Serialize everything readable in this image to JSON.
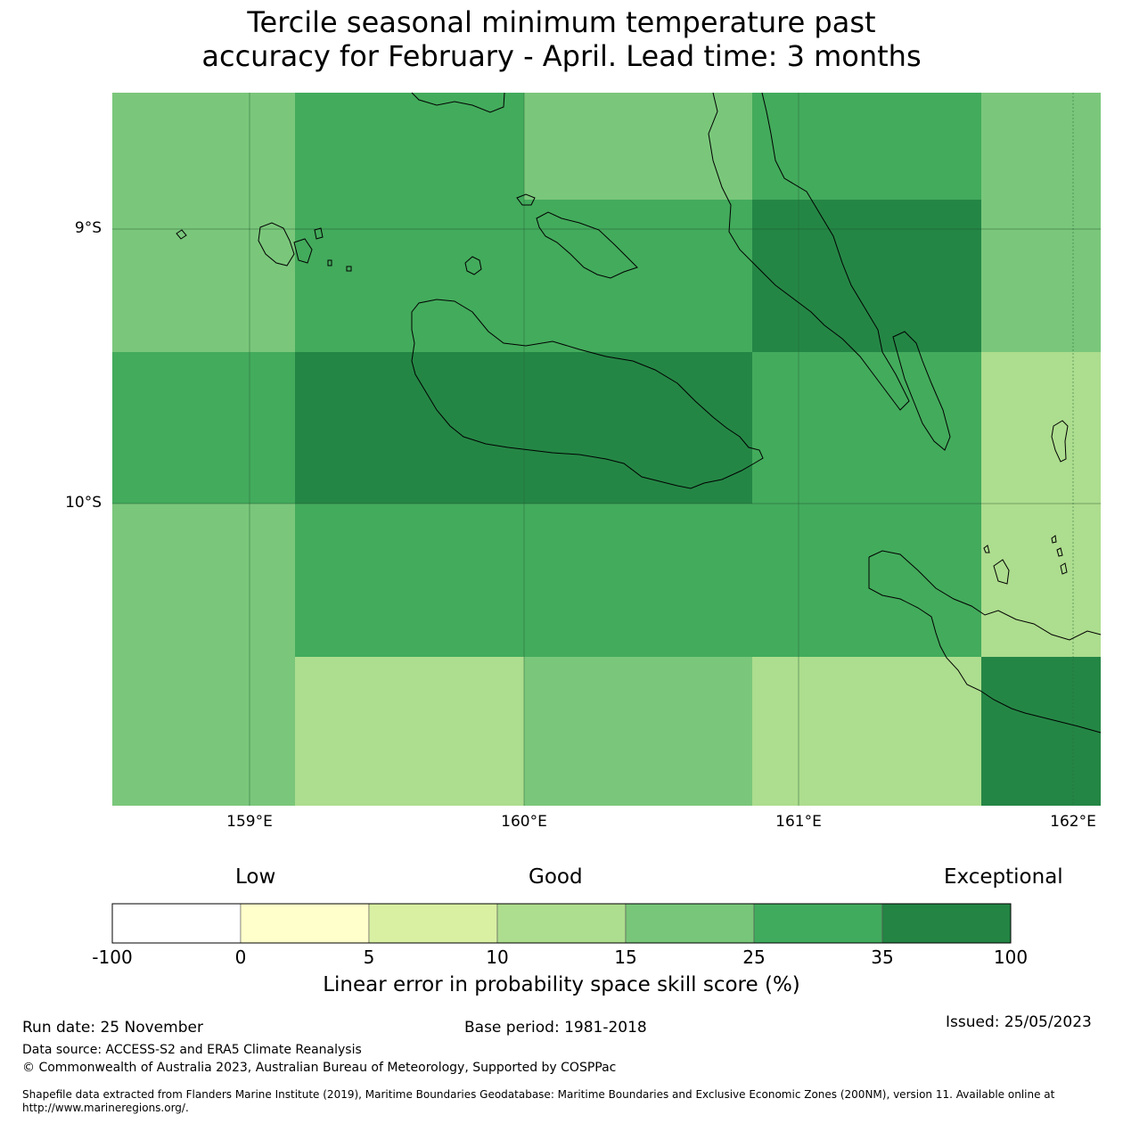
{
  "title_line1": "Tercile seasonal minimum temperature past",
  "title_line2": "accuracy for February - April. Lead time: 3 months",
  "map": {
    "lat_labels": [
      "9°S",
      "10°S"
    ],
    "lon_labels": [
      "159°E",
      "160°E",
      "161°E",
      "162°E"
    ],
    "cell_colors": {
      "25": "#43ab5c",
      "35": "#248645",
      "15": "#7ac77b",
      "10": "#addd8e"
    }
  },
  "legend": {
    "word_low": "Low",
    "word_good": "Good",
    "word_exceptional": "Exceptional",
    "bins": [
      "-100",
      "0",
      "5",
      "10",
      "15",
      "25",
      "35",
      "100"
    ],
    "bin_colors": [
      "#ffffff",
      "#ffffcc",
      "#d9f0a3",
      "#addd8e",
      "#78c679",
      "#41ab5d",
      "#238443"
    ],
    "title": "Linear error in probability space skill score (%)"
  },
  "footer": {
    "run_date": "Run date: 25 November",
    "base_period": "Base period: 1981-2018",
    "issued": "Issued: 25/05/2023",
    "data_source": "Data source: ACCESS-S2 and ERA5 Climate Reanalysis",
    "copyright": "© Commonwealth of Australia 2023, Australian Bureau of Meteorology, Supported by COSPPac",
    "shapefile": "Shapefile data extracted from Flanders Marine Institute (2019), Maritime Boundaries Geodatabase: Maritime Boundaries and Exclusive Economic Zones (200NM), version 11. Available online at http://www.marineregions.org/."
  }
}
